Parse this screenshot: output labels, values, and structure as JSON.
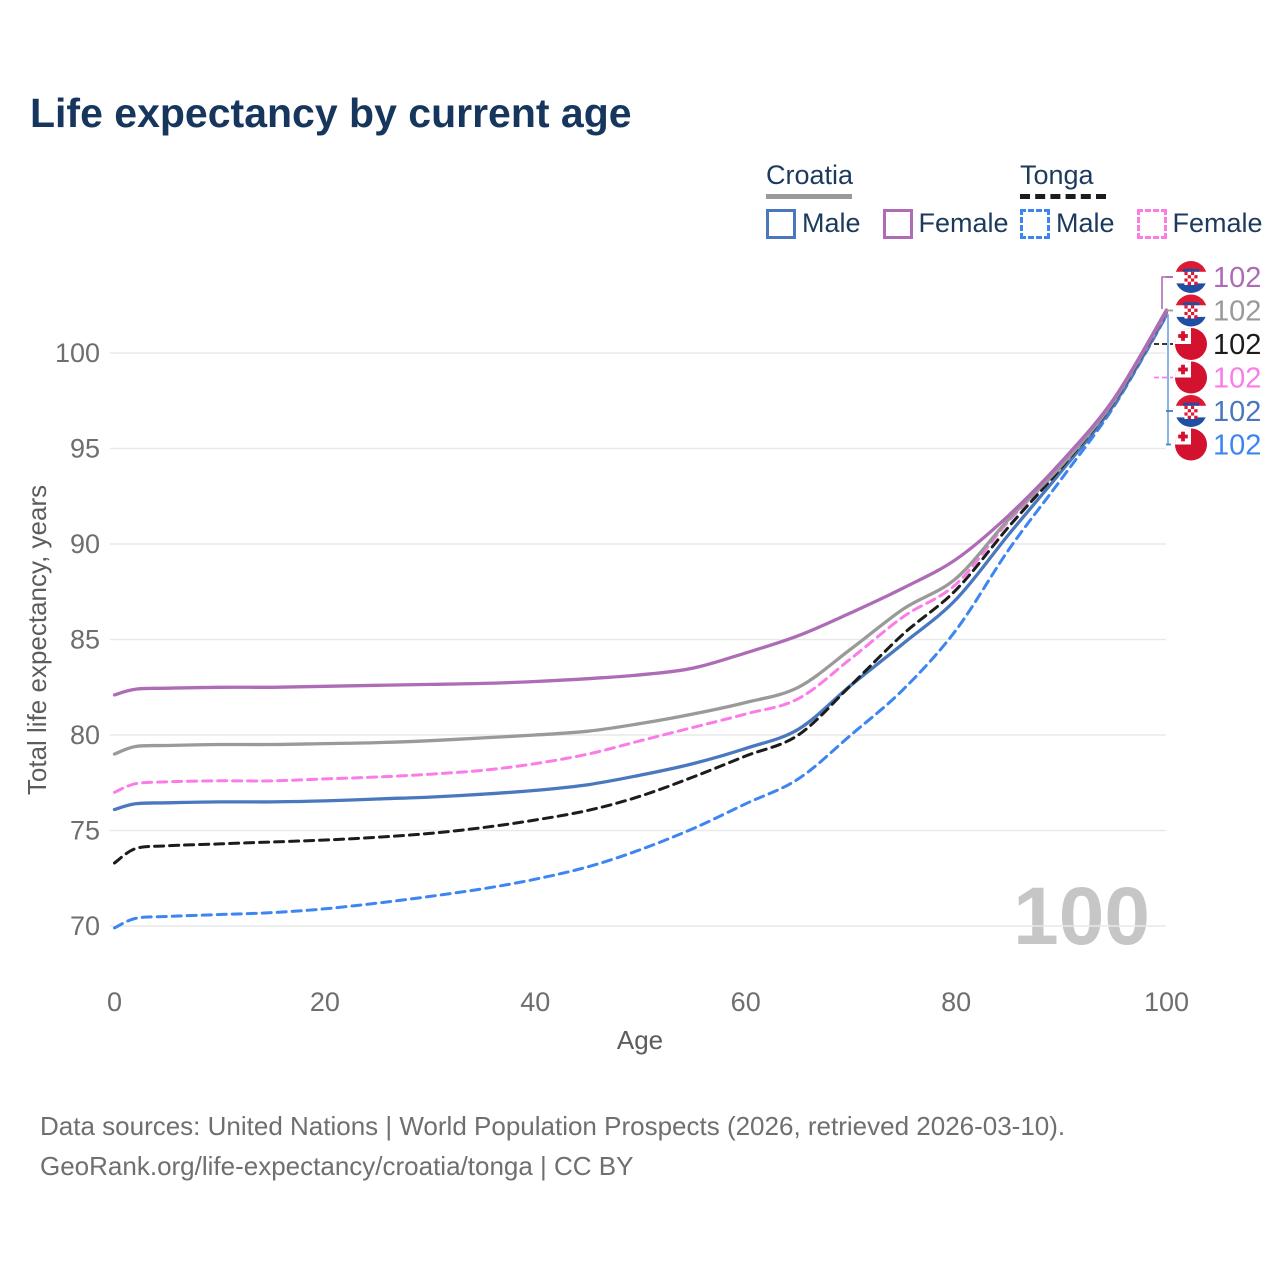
{
  "title": "Life expectancy by current age",
  "legend": {
    "groups": [
      {
        "name": "Croatia",
        "line_style": "solid",
        "underline_color": "#9a9a9a",
        "items": [
          {
            "label": "Male",
            "color": "#4a78bf",
            "dashed": false
          },
          {
            "label": "Female",
            "color": "#ad6cb5",
            "dashed": false
          }
        ]
      },
      {
        "name": "Tonga",
        "line_style": "dashed",
        "underline_color": "#1c1c1c",
        "items": [
          {
            "label": "Male",
            "color": "#3d86f2",
            "dashed": true
          },
          {
            "label": "Female",
            "color": "#fb7ce8",
            "dashed": true
          }
        ]
      }
    ]
  },
  "watermark_age": "100",
  "chart_data": {
    "type": "line",
    "title": "Life expectancy by current age",
    "xlabel": "Age",
    "ylabel": "Total life expectancy, years",
    "x_ticks": [
      0,
      20,
      40,
      60,
      80,
      100
    ],
    "y_ticks": [
      70,
      75,
      80,
      85,
      90,
      95,
      100
    ],
    "xlim": [
      0,
      100
    ],
    "ylim": [
      67.5,
      103.5
    ],
    "grid": true,
    "x": [
      0,
      2,
      5,
      10,
      15,
      20,
      25,
      30,
      35,
      40,
      45,
      50,
      55,
      60,
      65,
      70,
      75,
      80,
      85,
      90,
      95,
      100
    ],
    "series": [
      {
        "name": "Croatia Female",
        "country": "Croatia",
        "sex": "Female",
        "color": "#ad6cb5",
        "dashed": false,
        "flag": "croatia",
        "end_label": "102",
        "label_row": 0,
        "values": [
          82.1,
          82.4,
          82.45,
          82.5,
          82.5,
          82.55,
          82.6,
          82.65,
          82.7,
          82.8,
          82.95,
          83.15,
          83.5,
          84.3,
          85.2,
          86.4,
          87.7,
          89.2,
          91.5,
          94.3,
          97.6,
          102.25
        ]
      },
      {
        "name": "Croatia Both sexes",
        "country": "Croatia",
        "sex": "Both",
        "color": "#9a9a9a",
        "dashed": false,
        "flag": "croatia",
        "end_label": "102",
        "label_row": 1,
        "values": [
          79.0,
          79.4,
          79.45,
          79.5,
          79.5,
          79.55,
          79.6,
          79.7,
          79.85,
          80.0,
          80.2,
          80.6,
          81.1,
          81.7,
          82.5,
          84.5,
          86.6,
          88.2,
          91.3,
          94.1,
          97.5,
          102.2
        ]
      },
      {
        "name": "Tonga Both sexes",
        "country": "Tonga",
        "sex": "Both",
        "color": "#1c1c1c",
        "dashed": true,
        "flag": "tonga",
        "end_label": "102",
        "label_row": 2,
        "values": [
          73.3,
          74.05,
          74.2,
          74.3,
          74.4,
          74.5,
          74.65,
          74.85,
          75.15,
          75.55,
          76.05,
          76.8,
          77.8,
          78.9,
          80.0,
          82.6,
          85.3,
          87.6,
          90.9,
          94.0,
          97.45,
          102.15
        ]
      },
      {
        "name": "Tonga Female",
        "country": "Tonga",
        "sex": "Female",
        "color": "#fb7ce8",
        "dashed": true,
        "flag": "tonga",
        "end_label": "102",
        "label_row": 3,
        "values": [
          77.0,
          77.45,
          77.55,
          77.6,
          77.6,
          77.7,
          77.8,
          77.95,
          78.15,
          78.5,
          79.0,
          79.7,
          80.4,
          81.1,
          81.9,
          84.0,
          86.2,
          87.9,
          91.2,
          94.05,
          97.5,
          102.1
        ]
      },
      {
        "name": "Croatia Male",
        "country": "Croatia",
        "sex": "Male",
        "color": "#4a78bf",
        "dashed": false,
        "flag": "croatia",
        "end_label": "102",
        "label_row": 4,
        "values": [
          76.1,
          76.4,
          76.45,
          76.5,
          76.5,
          76.55,
          76.65,
          76.75,
          76.9,
          77.1,
          77.4,
          77.9,
          78.5,
          79.3,
          80.3,
          82.6,
          84.8,
          87.1,
          90.5,
          93.8,
          97.3,
          102.0
        ]
      },
      {
        "name": "Tonga Male",
        "country": "Tonga",
        "sex": "Male",
        "color": "#3d86f2",
        "dashed": true,
        "flag": "tonga",
        "end_label": "102",
        "label_row": 5,
        "values": [
          69.9,
          70.4,
          70.5,
          70.6,
          70.7,
          70.9,
          71.2,
          71.55,
          71.95,
          72.45,
          73.1,
          74.0,
          75.1,
          76.4,
          77.7,
          80.0,
          82.4,
          85.5,
          89.7,
          93.4,
          97.2,
          101.95
        ]
      }
    ]
  },
  "footer": {
    "line1": "Data sources: United Nations | World Population Prospects (2026, retrieved 2026-03-10).",
    "line2": "GeoRank.org/life-expectancy/croatia/tonga | CC BY"
  }
}
